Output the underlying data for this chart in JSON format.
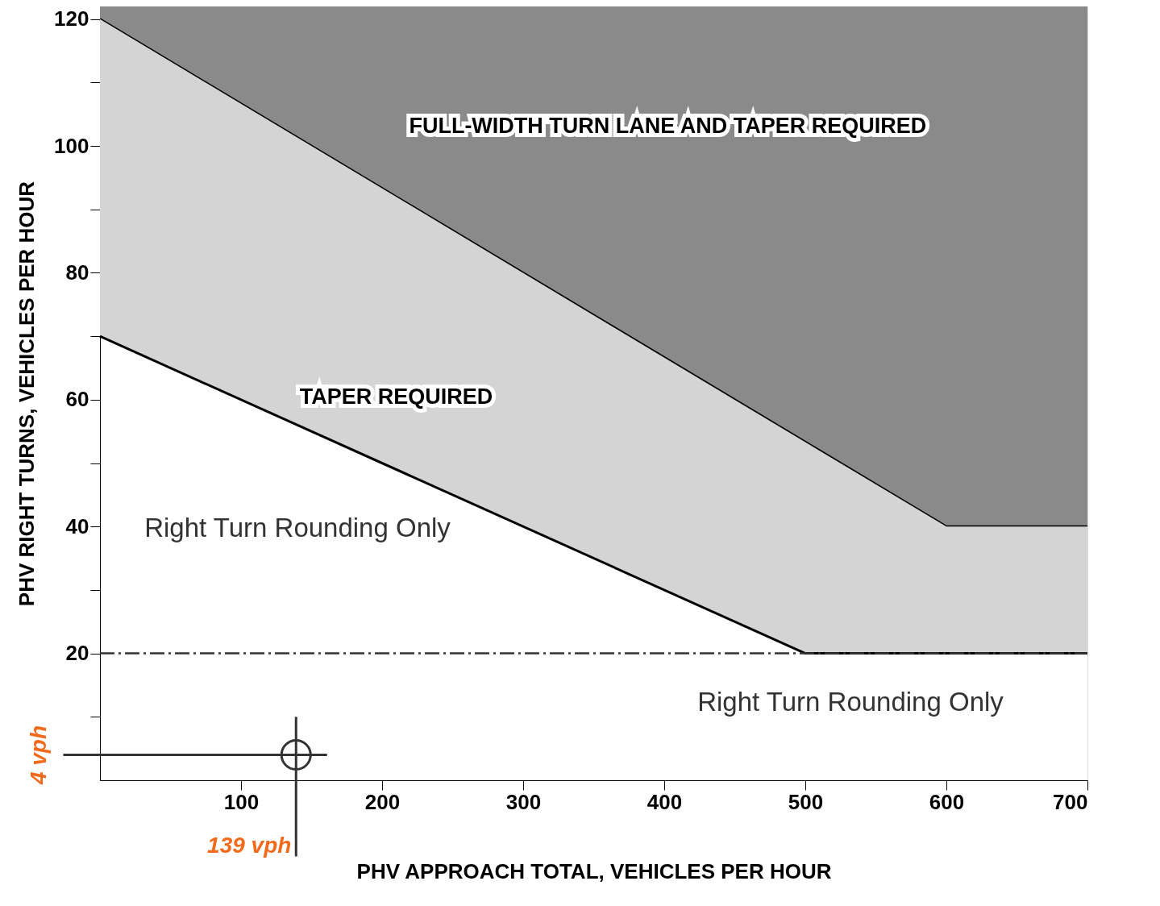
{
  "chart_data": {
    "type": "line",
    "xlabel": "PHV APPROACH TOTAL, VEHICLES PER HOUR",
    "ylabel": "PHV RIGHT TURNS, VEHICLES PER HOUR",
    "xlim": [
      0,
      700
    ],
    "xticks": [
      100,
      200,
      300,
      400,
      500,
      600,
      700
    ],
    "ylim": [
      0,
      122
    ],
    "yticks": [
      {
        "value": 10,
        "label": null
      },
      20,
      {
        "value": 30,
        "label": null
      },
      40,
      {
        "value": 50,
        "label": null
      },
      60,
      {
        "value": 70,
        "label": null
      },
      80,
      {
        "value": 90,
        "label": null
      },
      100,
      {
        "value": 110,
        "label": null
      },
      120
    ],
    "grid": false,
    "series": [
      {
        "color": "#000000",
        "x": [
          0,
          600,
          700
        ],
        "values": [
          120,
          40,
          40
        ],
        "lower": [
          120,
          40,
          40
        ],
        "upper": [
          122,
          122,
          122
        ]
      },
      {
        "color": "#000000",
        "x": [
          0,
          500,
          600,
          700
        ],
        "values": [
          70,
          20,
          20,
          20
        ],
        "lower": [
          70,
          20,
          20,
          20
        ],
        "upper": [
          120,
          53.3,
          40,
          40
        ]
      },
      {
        "type": "scatter",
        "marker": "circle",
        "color": "#333333",
        "x": [
          139
        ],
        "values": [
          4
        ]
      }
    ],
    "ref_lines": [
      {
        "axis": "y",
        "value": 20,
        "line_style": "dashed",
        "color": "#333333"
      }
    ],
    "annotations": [
      "FULL-WIDTH TURN LANE AND TAPER REQUIRED",
      "TAPER REQUIRED",
      "Right Turn Rounding Only",
      "Right Turn Rounding Only",
      "4 vph",
      "139  vph"
    ]
  }
}
